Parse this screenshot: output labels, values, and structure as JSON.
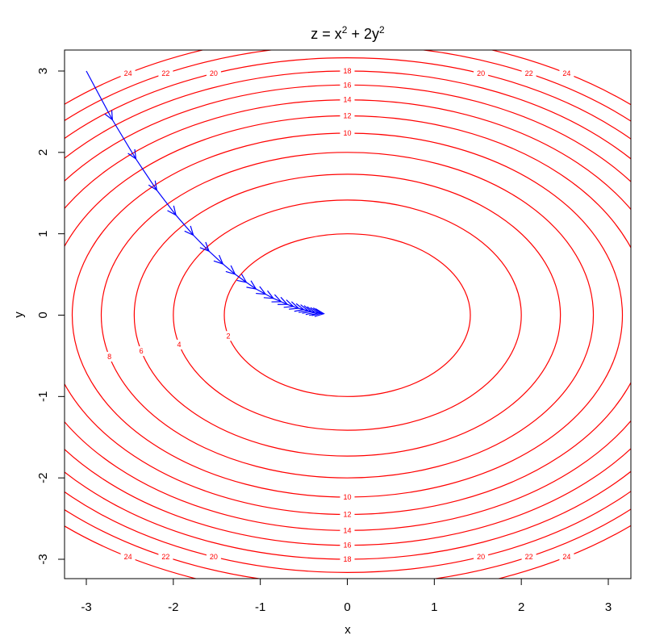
{
  "chart_data": {
    "type": "contour",
    "title_parts": {
      "prefix": "z = x",
      "sup1": "2",
      "mid": " + 2y",
      "sup2": "2"
    },
    "xlabel": "x",
    "ylabel": "y",
    "xlim": [
      -3,
      3
    ],
    "ylim": [
      -3,
      3
    ],
    "x_ticks": [
      "-3",
      "-2",
      "-1",
      "0",
      "1",
      "2",
      "3"
    ],
    "y_ticks": [
      "-3",
      "-2",
      "-1",
      "0",
      "1",
      "2",
      "3"
    ],
    "contour_color": "#ff0000",
    "contour_levels": [
      2,
      4,
      6,
      8,
      10,
      12,
      14,
      16,
      18,
      20,
      22,
      24
    ],
    "path_color": "#0000ff",
    "gradient_path": [
      [
        -3.0,
        3.0
      ],
      [
        -2.7,
        2.4
      ],
      [
        -2.43,
        1.92
      ],
      [
        -2.19,
        1.536
      ],
      [
        -1.97,
        1.229
      ],
      [
        -1.77,
        0.983
      ],
      [
        -1.59,
        0.786
      ],
      [
        -1.43,
        0.629
      ],
      [
        -1.29,
        0.503
      ],
      [
        -1.16,
        0.403
      ],
      [
        -1.05,
        0.322
      ],
      [
        -0.94,
        0.258
      ],
      [
        -0.85,
        0.206
      ],
      [
        -0.76,
        0.165
      ],
      [
        -0.69,
        0.132
      ],
      [
        -0.62,
        0.106
      ],
      [
        -0.56,
        0.084
      ],
      [
        -0.5,
        0.068
      ],
      [
        -0.45,
        0.054
      ],
      [
        -0.41,
        0.043
      ],
      [
        -0.37,
        0.035
      ],
      [
        -0.33,
        0.028
      ],
      [
        -0.3,
        0.022
      ],
      [
        -0.27,
        0.018
      ]
    ]
  }
}
